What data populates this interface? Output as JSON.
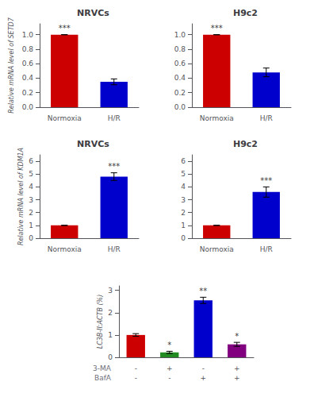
{
  "chart_data": [
    {
      "type": "bar",
      "title": "NRVCs",
      "ylabel": "Relative mRNA level of SETD7",
      "categories": [
        "Normoxia",
        "H/R"
      ],
      "values": [
        1.0,
        0.35
      ],
      "errors": [
        0.0,
        0.04
      ],
      "colors": [
        "#CC0000",
        "#0000CC"
      ],
      "ylim": [
        0,
        1.15
      ],
      "yticks": [
        {
          "value": 0,
          "label": "0.0"
        },
        0.2,
        0.4,
        0.6,
        0.8,
        {
          "value": 1,
          "label": "1.0"
        }
      ],
      "annotations": [
        "***",
        null
      ],
      "grid": false
    },
    {
      "type": "bar",
      "title": "H9c2",
      "categories": [
        "Normoxia",
        "H/R"
      ],
      "values": [
        1.0,
        0.48
      ],
      "errors": [
        0.0,
        0.06
      ],
      "colors": [
        "#CC0000",
        "#0000CC"
      ],
      "ylim": [
        0,
        1.15
      ],
      "yticks": [
        {
          "value": 0,
          "label": "0.0"
        },
        0.2,
        0.4,
        0.6,
        0.8,
        {
          "value": 1,
          "label": "1.0"
        }
      ],
      "annotations": [
        "***",
        null
      ],
      "grid": false
    },
    {
      "type": "bar",
      "title": "NRVCs",
      "ylabel": "Relative mRNA level of KDM1A",
      "categories": [
        "Normoxia",
        "H/R"
      ],
      "values": [
        1.0,
        4.8
      ],
      "errors": [
        0.0,
        0.3
      ],
      "colors": [
        "#CC0000",
        "#0000CC"
      ],
      "ylim": [
        0,
        6.5
      ],
      "yticks": [
        0,
        1,
        2,
        3,
        4,
        5,
        6
      ],
      "annotations": [
        null,
        "***"
      ],
      "grid": false
    },
    {
      "type": "bar",
      "title": "H9c2",
      "categories": [
        "Normoxia",
        "H/R"
      ],
      "values": [
        1.0,
        3.6
      ],
      "errors": [
        0.0,
        0.4
      ],
      "colors": [
        "#CC0000",
        "#0000CC"
      ],
      "ylim": [
        0,
        6.5
      ],
      "yticks": [
        0,
        1,
        2,
        3,
        4,
        5,
        6
      ],
      "annotations": [
        null,
        "***"
      ],
      "grid": false
    },
    {
      "type": "bar",
      "ylabel": "LC3B-II:ACTB (%)",
      "xlabel": [
        "3-MA",
        "BafA"
      ],
      "categories": [
        "-\n-",
        "+\n-",
        "-\n+",
        "+\n+"
      ],
      "values": [
        1.0,
        0.22,
        2.55,
        0.58
      ],
      "errors": [
        0.06,
        0.05,
        0.14,
        0.09
      ],
      "colors": [
        "#CC0000",
        "#228B22",
        "#0000CC",
        "#800080"
      ],
      "ylim": [
        0,
        3.2
      ],
      "yticks": [
        0,
        1,
        2,
        3
      ],
      "annotations": [
        null,
        "*",
        "**",
        "*"
      ],
      "grid": false
    }
  ]
}
